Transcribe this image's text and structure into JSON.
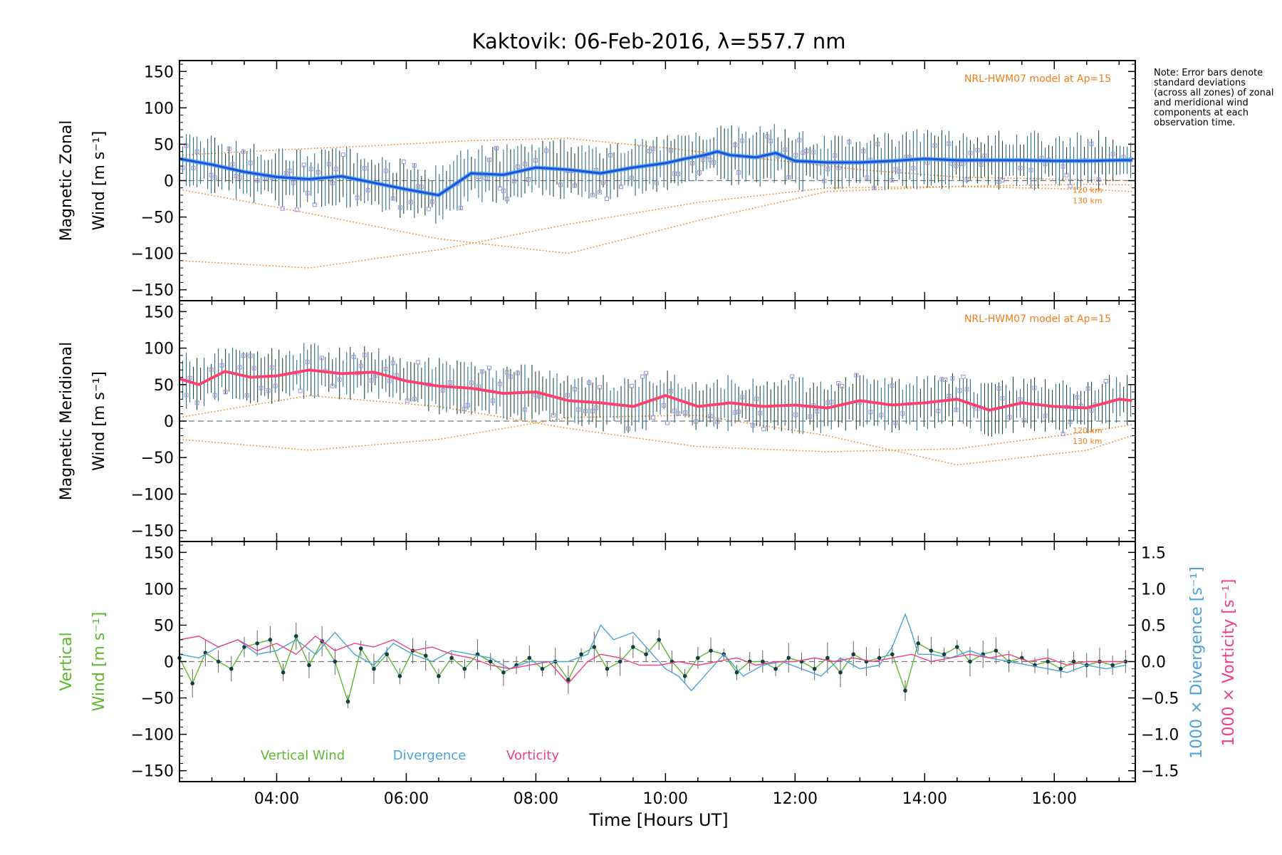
{
  "title": "Kaktovik: 06-Feb-2016, λ=557.7 nm",
  "note": "Note: Error bars denote standard deviations (across all zones) of zonal and meridional wind components at each observation time.",
  "x_axis": {
    "label": "Time [Hours UT]",
    "ticks": [
      "04:00",
      "06:00",
      "08:00",
      "10:00",
      "12:00",
      "14:00",
      "16:00"
    ]
  },
  "colors": {
    "zonal_mean": "#1f4fe0",
    "zonal_light": "#4aa8e8",
    "meridional_mean": "#ff3f6e",
    "model": "#f07d1a",
    "scatter": "#9a8fe0",
    "errorbar": "#1d4a3a",
    "vertical_wind": "#5cb82e",
    "divergence": "#4ba3d6",
    "vorticity": "#ee3f88",
    "zero_line": "#777777"
  },
  "chart_data": [
    {
      "type": "line",
      "ylabel_line1": "Magnetic Zonal",
      "ylabel_line2": "Wind [m s⁻¹]",
      "ylim": [
        -165,
        165
      ],
      "yticks": [
        "150",
        "100",
        "50",
        "0",
        "−50",
        "−100",
        "−150"
      ],
      "model_label": "NRL-HWM07 model at Ap=15",
      "model_curve_labels": [
        "120 km",
        "130 km"
      ],
      "mean_series": {
        "name": "Zonal mean",
        "x": [
          2.5,
          3.0,
          3.5,
          4.0,
          4.5,
          5.0,
          5.5,
          6.0,
          6.5,
          7.0,
          7.5,
          8.0,
          8.5,
          9.0,
          9.5,
          10.0,
          10.3,
          10.6,
          10.8,
          11.0,
          11.4,
          11.7,
          12.0,
          12.5,
          13.0,
          13.5,
          14.0,
          14.5,
          15.0,
          15.5,
          16.0,
          16.5,
          17.0,
          17.2
        ],
        "values": [
          30,
          22,
          12,
          5,
          2,
          6,
          -3,
          -12,
          -20,
          10,
          8,
          18,
          15,
          10,
          18,
          24,
          30,
          35,
          40,
          35,
          32,
          38,
          27,
          25,
          25,
          27,
          30,
          28,
          28,
          28,
          27,
          27,
          28,
          28
        ]
      },
      "model_curves": [
        {
          "name": "120 km",
          "x": [
            2.5,
            4.5,
            6.5,
            8.5,
            10.5,
            12.5,
            14.5,
            16.5,
            17.2
          ],
          "values": [
            -12,
            -45,
            -80,
            -100,
            -55,
            -15,
            -8,
            -5,
            -6
          ]
        },
        {
          "name": "130 km",
          "x": [
            2.5,
            4.5,
            6.5,
            8.5,
            10.5,
            12.5,
            14.5,
            16.5,
            17.2
          ],
          "values": [
            -110,
            -120,
            -95,
            -60,
            -30,
            -10,
            -8,
            -12,
            -15
          ]
        },
        {
          "name": "dotted",
          "x": [
            2.5,
            4.0,
            5.5,
            7.0,
            8.5,
            10.0,
            11.5,
            13.0,
            14.5,
            16.0,
            17.2
          ],
          "values": [
            35,
            42,
            48,
            55,
            58,
            45,
            30,
            15,
            5,
            2,
            0
          ]
        }
      ],
      "errorbar_std": 30
    },
    {
      "type": "line",
      "ylabel_line1": "Magnetic Meridional",
      "ylabel_line2": "Wind [m s⁻¹]",
      "ylim": [
        -165,
        165
      ],
      "yticks": [
        "150",
        "100",
        "50",
        "0",
        "−50",
        "−100",
        "−150"
      ],
      "model_label": "NRL-HWM07 model at Ap=15",
      "model_curve_labels": [
        "120 km",
        "130 km"
      ],
      "mean_series": {
        "name": "Meridional mean",
        "x": [
          2.5,
          2.8,
          3.2,
          3.6,
          4.0,
          4.5,
          5.0,
          5.5,
          6.0,
          6.5,
          7.0,
          7.5,
          8.0,
          8.5,
          9.0,
          9.5,
          10.0,
          10.5,
          11.0,
          11.5,
          12.0,
          12.5,
          13.0,
          13.5,
          14.0,
          14.5,
          15.0,
          15.5,
          16.0,
          16.5,
          17.0,
          17.2
        ],
        "values": [
          58,
          50,
          68,
          60,
          62,
          70,
          65,
          67,
          55,
          48,
          45,
          38,
          40,
          28,
          25,
          20,
          35,
          20,
          25,
          20,
          22,
          18,
          28,
          22,
          25,
          30,
          15,
          25,
          20,
          18,
          30,
          28
        ]
      },
      "model_curves": [
        {
          "name": "120 km",
          "x": [
            2.5,
            4.5,
            6.5,
            8.5,
            10.5,
            12.5,
            14.5,
            16.5,
            17.2
          ],
          "values": [
            5,
            35,
            20,
            -10,
            -35,
            -42,
            -38,
            -15,
            -5
          ]
        },
        {
          "name": "130 km",
          "x": [
            2.5,
            4.5,
            6.5,
            8.5,
            10.5,
            12.5,
            14.5,
            16.5,
            17.2
          ],
          "values": [
            -25,
            -40,
            -25,
            5,
            8,
            -20,
            -60,
            -40,
            -20
          ]
        }
      ],
      "errorbar_std": 28
    },
    {
      "type": "line",
      "ylabel_line1": "Vertical",
      "ylabel_line2": "Wind [m s⁻¹]",
      "ylim": [
        -165,
        165
      ],
      "yticks": [
        "150",
        "100",
        "50",
        "0",
        "−50",
        "−100",
        "−150"
      ],
      "y2label_1": "1000 × Divergence [s⁻¹]",
      "y2label_2": "1000 × Vorticity [s⁻¹]",
      "y2lim": [
        -1.65,
        1.65
      ],
      "y2ticks": [
        "1.5",
        "1.0",
        "0.5",
        "0.0",
        "−0.5",
        "−1.0",
        "−1.5"
      ],
      "legend": [
        "Vertical Wind",
        "Divergence",
        "Vorticity"
      ],
      "series": [
        {
          "name": "Vertical Wind",
          "x": [
            2.5,
            2.7,
            2.9,
            3.1,
            3.3,
            3.5,
            3.7,
            3.9,
            4.1,
            4.3,
            4.5,
            4.7,
            4.9,
            5.1,
            5.3,
            5.5,
            5.7,
            5.9,
            6.1,
            6.3,
            6.5,
            6.7,
            6.9,
            7.1,
            7.3,
            7.5,
            7.7,
            7.9,
            8.1,
            8.3,
            8.5,
            8.7,
            8.9,
            9.1,
            9.3,
            9.5,
            9.7,
            9.9,
            10.1,
            10.3,
            10.5,
            10.7,
            10.9,
            11.1,
            11.3,
            11.5,
            11.7,
            11.9,
            12.1,
            12.3,
            12.5,
            12.7,
            12.9,
            13.1,
            13.3,
            13.5,
            13.7,
            13.9,
            14.1,
            14.3,
            14.5,
            14.7,
            14.9,
            15.1,
            15.3,
            15.5,
            15.7,
            15.9,
            16.1,
            16.3,
            16.5,
            16.7,
            16.9,
            17.1
          ],
          "values": [
            5,
            -30,
            12,
            0,
            -10,
            20,
            25,
            30,
            -15,
            35,
            -5,
            28,
            0,
            -55,
            18,
            -10,
            10,
            -20,
            15,
            8,
            -20,
            5,
            -10,
            10,
            0,
            -15,
            -5,
            5,
            -10,
            0,
            -25,
            10,
            20,
            -10,
            0,
            20,
            10,
            30,
            0,
            -20,
            5,
            15,
            10,
            -15,
            0,
            0,
            -10,
            5,
            0,
            -10,
            5,
            -15,
            10,
            0,
            5,
            10,
            -40,
            25,
            15,
            10,
            20,
            0,
            10,
            15,
            0,
            5,
            -5,
            0,
            -10,
            0,
            -5,
            0,
            -5,
            0
          ]
        },
        {
          "name": "Divergence",
          "x": [
            2.5,
            2.8,
            3.1,
            3.4,
            3.7,
            4.0,
            4.3,
            4.6,
            4.9,
            5.2,
            5.5,
            5.8,
            6.1,
            6.4,
            6.7,
            7.0,
            7.3,
            7.6,
            7.9,
            8.2,
            8.5,
            8.8,
            9.0,
            9.2,
            9.5,
            9.8,
            10.0,
            10.2,
            10.4,
            10.6,
            10.9,
            11.2,
            11.5,
            11.8,
            12.1,
            12.4,
            12.7,
            13.0,
            13.3,
            13.5,
            13.7,
            13.8,
            13.9,
            14.1,
            14.4,
            14.7,
            15.0,
            15.3,
            15.6,
            15.9,
            16.2,
            16.5,
            16.8,
            17.1
          ],
          "values": [
            0.1,
            0.05,
            0.2,
            0.3,
            0.1,
            0.15,
            0.3,
            0.1,
            0.4,
            0.1,
            -0.05,
            0.25,
            0.1,
            0.0,
            0.15,
            0.1,
            0.05,
            -0.1,
            0.0,
            0.0,
            0.0,
            0.1,
            0.5,
            0.3,
            0.4,
            0.1,
            -0.1,
            -0.2,
            -0.4,
            -0.2,
            0.1,
            -0.2,
            -0.05,
            0.0,
            -0.1,
            -0.2,
            0.05,
            -0.1,
            -0.05,
            0.2,
            0.65,
            0.4,
            0.1,
            0.1,
            0.05,
            0.15,
            0.05,
            0.0,
            -0.05,
            -0.1,
            -0.15,
            -0.05,
            -0.1,
            -0.05
          ]
        },
        {
          "name": "Vorticity",
          "x": [
            2.5,
            2.8,
            3.1,
            3.4,
            3.7,
            4.0,
            4.3,
            4.6,
            4.9,
            5.2,
            5.5,
            5.8,
            6.1,
            6.4,
            6.7,
            7.0,
            7.3,
            7.6,
            7.9,
            8.2,
            8.5,
            8.8,
            9.0,
            9.3,
            9.6,
            9.9,
            10.2,
            10.5,
            10.8,
            11.1,
            11.4,
            11.7,
            12.0,
            12.3,
            12.6,
            12.9,
            13.2,
            13.5,
            13.8,
            14.1,
            14.4,
            14.7,
            15.0,
            15.3,
            15.6,
            15.9,
            16.2,
            16.5,
            16.8,
            17.1
          ],
          "values": [
            0.3,
            0.35,
            0.2,
            0.3,
            0.15,
            0.25,
            0.1,
            0.35,
            0.15,
            0.25,
            0.2,
            0.3,
            0.15,
            0.2,
            0.1,
            0.05,
            -0.05,
            -0.1,
            -0.05,
            0.0,
            -0.3,
            0.0,
            0.1,
            0.05,
            -0.05,
            -0.05,
            0.0,
            -0.05,
            0.0,
            0.05,
            -0.05,
            0.0,
            0.0,
            0.05,
            0.0,
            0.05,
            0.0,
            0.05,
            0.1,
            0.0,
            0.05,
            0.1,
            0.05,
            0.1,
            0.0,
            0.05,
            -0.05,
            0.0,
            0.0,
            0.0
          ]
        }
      ]
    }
  ]
}
